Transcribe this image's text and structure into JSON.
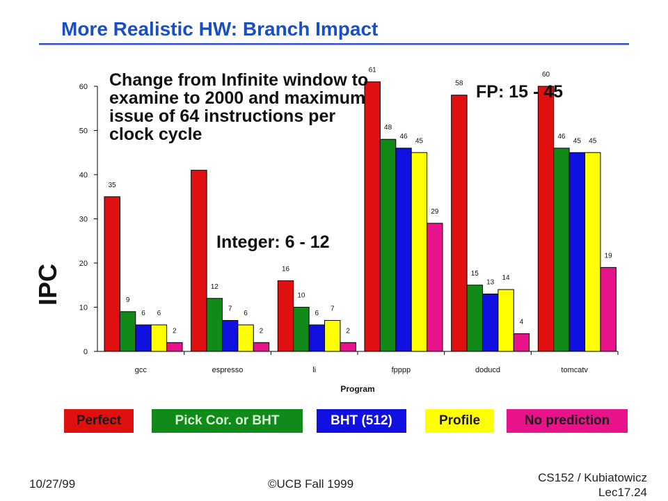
{
  "slide": {
    "title": "More Realistic HW: Branch Impact",
    "annotation_change": "Change from Infinite window to examine to 2000 and maximum issue of 64 instructions per clock cycle",
    "annotation_fp": "FP: 15 - 45",
    "annotation_int": "Integer: 6 - 12",
    "footer_date": "10/27/99",
    "footer_copyright": "©UCB Fall 1999",
    "footer_course": "CS152 / Kubiatowicz",
    "footer_lecture": "Lec17.24"
  },
  "chart_data": {
    "type": "bar",
    "title": "",
    "xlabel": "Program",
    "ylabel": "IPC",
    "ylim": [
      0,
      60
    ],
    "yticks": [
      0,
      10,
      20,
      30,
      40,
      50,
      60
    ],
    "grid": false,
    "legend_position": "bottom",
    "categories": [
      "gcc",
      "espresso",
      "li",
      "fpppp",
      "doducd",
      "tomcatv"
    ],
    "series": [
      {
        "name": "Perfect",
        "color": "#e01010",
        "values": [
          35,
          41,
          16,
          61,
          58,
          60
        ],
        "labels": [
          "35",
          "",
          "16",
          "61",
          "58",
          "60"
        ]
      },
      {
        "name": "Pick Cor. or BHT",
        "color": "#128a1a",
        "values": [
          9,
          12,
          10,
          48,
          15,
          46
        ],
        "labels": [
          "9",
          "12",
          "10",
          "48",
          "15",
          "46"
        ]
      },
      {
        "name": "BHT (512)",
        "color": "#1010e0",
        "values": [
          6,
          7,
          6,
          46,
          13,
          45
        ],
        "labels": [
          "6",
          "7",
          "6",
          "46",
          "13",
          "45"
        ]
      },
      {
        "name": "Profile",
        "color": "#ffff00",
        "values": [
          6,
          6,
          7,
          45,
          14,
          45
        ],
        "labels": [
          "6",
          "6",
          "7",
          "45",
          "14",
          "45"
        ]
      },
      {
        "name": "No prediction",
        "color": "#e8138a",
        "values": [
          2,
          2,
          2,
          29,
          4,
          19
        ],
        "labels": [
          "2",
          "2",
          "2",
          "29",
          "4",
          "19"
        ]
      }
    ]
  }
}
